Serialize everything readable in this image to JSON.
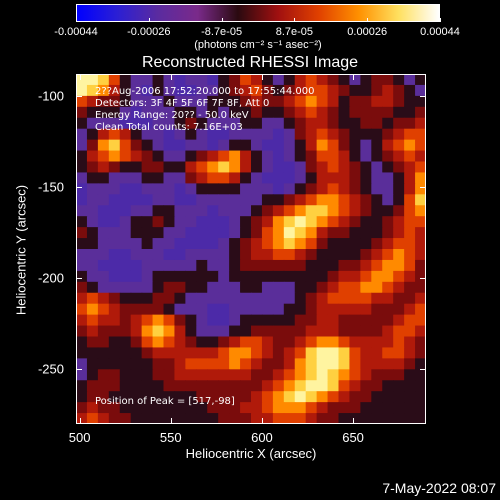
{
  "colorbar": {
    "tick_labels": [
      "-0.00044",
      "-0.00026",
      "-8.7e-05",
      "8.7e-05",
      "0.00026",
      "0.00044"
    ],
    "units_label": "(photons cm⁻² s⁻¹ asec⁻²)",
    "range": [
      -0.00044,
      0.00044
    ],
    "palette": [
      "#0000ff",
      "#2b1fd4",
      "#5a2ba0",
      "#7a2a8a",
      "#2a0a10",
      "#a01010",
      "#e04000",
      "#ff9000",
      "#ffe060",
      "#ffffff"
    ]
  },
  "title": "Reconstructed RHESSI Image",
  "info_lines": [
    "2??Aug-2006 17:52:20.000 to 17:55:44.000",
    "Detectors: 3F 4F 5F 6F 7F 8F, Att 0",
    "Energy Range: 20?? - 50.0 keV",
    "Clean     Total counts: 7.16E+03"
  ],
  "peak_text": "Position of Peak = [517,-98]",
  "footer_date": "7-May-2022 08:07",
  "chart_data": {
    "type": "heatmap",
    "title": "Reconstructed RHESSI Image",
    "xlabel": "Heliocentric X (arcsec)",
    "ylabel": "Heliocentric Y (arcsec)",
    "xlim": [
      498,
      690
    ],
    "ylim": [
      -280,
      -88
    ],
    "xticks": [
      500,
      550,
      600,
      650
    ],
    "yticks": [
      -100,
      -150,
      -200,
      -250
    ],
    "peak": [
      517,
      -98
    ],
    "value_range": [
      -0.00044,
      0.00044
    ],
    "grid_cols": 32,
    "grid_rows": 32,
    "values": [
      [
        9,
        9,
        8,
        6,
        3,
        2,
        2,
        3,
        2,
        1,
        2,
        2,
        1,
        3,
        4,
        6,
        5,
        3,
        2,
        3,
        5,
        6,
        5,
        4,
        3,
        2,
        3,
        4,
        4,
        3,
        2,
        3
      ],
      [
        9,
        8,
        7,
        5,
        3,
        2,
        1,
        3,
        2,
        1,
        1,
        2,
        2,
        3,
        4,
        5,
        6,
        4,
        3,
        4,
        5,
        6,
        6,
        5,
        4,
        3,
        3,
        4,
        5,
        4,
        3,
        2
      ],
      [
        6,
        5,
        4,
        4,
        3,
        2,
        2,
        2,
        3,
        2,
        2,
        2,
        3,
        3,
        3,
        4,
        5,
        4,
        4,
        5,
        6,
        7,
        6,
        5,
        3,
        4,
        4,
        5,
        5,
        4,
        3,
        3
      ],
      [
        4,
        3,
        3,
        3,
        2,
        1,
        2,
        2,
        2,
        3,
        3,
        2,
        3,
        2,
        3,
        3,
        4,
        3,
        3,
        4,
        5,
        6,
        5,
        4,
        3,
        4,
        4,
        4,
        4,
        3,
        3,
        4
      ],
      [
        3,
        2,
        2,
        2,
        1,
        1,
        1,
        2,
        2,
        3,
        4,
        3,
        2,
        2,
        2,
        3,
        3,
        2,
        2,
        3,
        4,
        5,
        5,
        4,
        3,
        3,
        4,
        4,
        3,
        4,
        4,
        5
      ],
      [
        2,
        3,
        5,
        6,
        5,
        3,
        2,
        2,
        1,
        2,
        3,
        2,
        1,
        1,
        2,
        2,
        2,
        2,
        1,
        2,
        4,
        5,
        6,
        5,
        4,
        3,
        3,
        3,
        4,
        5,
        6,
        6
      ],
      [
        2,
        4,
        7,
        8,
        6,
        4,
        3,
        2,
        1,
        1,
        2,
        2,
        1,
        2,
        3,
        3,
        2,
        1,
        1,
        2,
        3,
        5,
        7,
        6,
        4,
        3,
        2,
        3,
        5,
        6,
        7,
        6
      ],
      [
        3,
        5,
        6,
        7,
        6,
        5,
        4,
        3,
        2,
        2,
        3,
        4,
        5,
        6,
        7,
        5,
        3,
        2,
        1,
        2,
        3,
        4,
        6,
        6,
        5,
        3,
        2,
        3,
        4,
        5,
        6,
        5
      ],
      [
        3,
        4,
        5,
        4,
        3,
        3,
        4,
        4,
        3,
        3,
        5,
        6,
        7,
        8,
        7,
        5,
        3,
        2,
        1,
        1,
        2,
        4,
        5,
        6,
        5,
        4,
        3,
        2,
        3,
        4,
        5,
        6
      ],
      [
        2,
        3,
        3,
        2,
        2,
        2,
        3,
        3,
        2,
        2,
        4,
        5,
        6,
        6,
        5,
        3,
        2,
        1,
        1,
        1,
        2,
        3,
        5,
        5,
        5,
        4,
        3,
        2,
        2,
        3,
        5,
        7
      ],
      [
        1,
        2,
        2,
        2,
        1,
        1,
        2,
        2,
        2,
        1,
        2,
        3,
        3,
        3,
        3,
        2,
        2,
        2,
        1,
        2,
        3,
        4,
        5,
        6,
        5,
        4,
        3,
        2,
        2,
        3,
        5,
        7
      ],
      [
        1,
        2,
        2,
        1,
        1,
        1,
        1,
        2,
        2,
        1,
        1,
        2,
        2,
        2,
        2,
        2,
        2,
        3,
        3,
        4,
        5,
        6,
        7,
        7,
        6,
        5,
        4,
        3,
        2,
        3,
        6,
        8
      ],
      [
        2,
        2,
        1,
        1,
        1,
        2,
        2,
        3,
        3,
        2,
        2,
        2,
        1,
        2,
        2,
        2,
        3,
        4,
        5,
        6,
        7,
        8,
        8,
        7,
        6,
        5,
        4,
        3,
        3,
        4,
        6,
        7
      ],
      [
        3,
        2,
        1,
        1,
        2,
        3,
        3,
        4,
        3,
        2,
        2,
        1,
        1,
        1,
        2,
        3,
        4,
        5,
        7,
        8,
        9,
        8,
        7,
        6,
        5,
        4,
        3,
        3,
        4,
        5,
        6,
        6
      ],
      [
        4,
        3,
        2,
        2,
        2,
        3,
        3,
        3,
        2,
        2,
        1,
        1,
        1,
        1,
        2,
        3,
        4,
        6,
        7,
        9,
        8,
        7,
        5,
        4,
        4,
        3,
        3,
        3,
        4,
        5,
        6,
        5
      ],
      [
        3,
        3,
        2,
        2,
        2,
        2,
        3,
        2,
        2,
        1,
        1,
        1,
        1,
        2,
        3,
        4,
        5,
        6,
        7,
        8,
        7,
        6,
        4,
        3,
        3,
        3,
        3,
        4,
        5,
        6,
        6,
        5
      ],
      [
        2,
        2,
        2,
        1,
        1,
        2,
        2,
        2,
        1,
        1,
        2,
        2,
        2,
        2,
        3,
        4,
        5,
        5,
        6,
        6,
        5,
        4,
        3,
        3,
        3,
        3,
        4,
        5,
        6,
        7,
        6,
        5
      ],
      [
        2,
        2,
        1,
        1,
        1,
        1,
        2,
        2,
        2,
        2,
        2,
        3,
        2,
        2,
        3,
        4,
        4,
        4,
        4,
        4,
        4,
        3,
        3,
        3,
        4,
        4,
        5,
        6,
        7,
        7,
        6,
        4
      ],
      [
        3,
        2,
        2,
        1,
        1,
        1,
        2,
        3,
        3,
        3,
        3,
        3,
        3,
        2,
        3,
        3,
        3,
        3,
        3,
        3,
        3,
        3,
        3,
        4,
        5,
        5,
        6,
        7,
        7,
        6,
        5,
        4
      ],
      [
        4,
        3,
        2,
        2,
        2,
        2,
        2,
        3,
        4,
        4,
        3,
        3,
        2,
        2,
        2,
        3,
        3,
        2,
        2,
        2,
        3,
        3,
        4,
        5,
        6,
        6,
        7,
        7,
        6,
        5,
        4,
        4
      ],
      [
        5,
        6,
        5,
        4,
        3,
        3,
        3,
        4,
        4,
        3,
        2,
        2,
        2,
        2,
        2,
        2,
        2,
        2,
        2,
        2,
        3,
        4,
        5,
        6,
        6,
        6,
        6,
        5,
        5,
        4,
        4,
        5
      ],
      [
        6,
        7,
        6,
        5,
        4,
        4,
        4,
        4,
        3,
        2,
        2,
        2,
        1,
        1,
        2,
        2,
        2,
        2,
        2,
        3,
        3,
        4,
        5,
        5,
        5,
        5,
        5,
        4,
        4,
        4,
        5,
        6
      ],
      [
        5,
        6,
        5,
        5,
        4,
        5,
        6,
        7,
        6,
        4,
        3,
        2,
        1,
        1,
        2,
        3,
        3,
        3,
        3,
        3,
        4,
        4,
        5,
        5,
        4,
        4,
        4,
        4,
        4,
        5,
        6,
        6
      ],
      [
        4,
        5,
        4,
        4,
        4,
        5,
        7,
        8,
        7,
        5,
        3,
        2,
        2,
        2,
        3,
        3,
        4,
        4,
        4,
        4,
        4,
        5,
        5,
        5,
        4,
        4,
        4,
        4,
        5,
        6,
        6,
        5
      ],
      [
        3,
        4,
        4,
        3,
        3,
        4,
        6,
        7,
        6,
        5,
        4,
        3,
        3,
        4,
        5,
        6,
        6,
        5,
        4,
        4,
        5,
        6,
        7,
        7,
        6,
        5,
        5,
        5,
        5,
        6,
        5,
        4
      ],
      [
        3,
        3,
        3,
        3,
        3,
        3,
        4,
        5,
        5,
        5,
        5,
        5,
        5,
        6,
        7,
        7,
        6,
        5,
        4,
        5,
        6,
        8,
        9,
        9,
        8,
        6,
        5,
        5,
        6,
        6,
        5,
        4
      ],
      [
        2,
        3,
        3,
        3,
        3,
        3,
        3,
        4,
        4,
        5,
        6,
        6,
        6,
        6,
        7,
        6,
        5,
        4,
        4,
        5,
        7,
        8,
        9,
        9,
        8,
        6,
        5,
        5,
        5,
        5,
        4,
        3
      ],
      [
        2,
        3,
        4,
        4,
        3,
        3,
        3,
        4,
        4,
        5,
        5,
        5,
        5,
        5,
        5,
        5,
        4,
        4,
        5,
        6,
        7,
        8,
        9,
        8,
        7,
        6,
        5,
        4,
        4,
        4,
        3,
        3
      ],
      [
        3,
        4,
        4,
        4,
        3,
        3,
        3,
        3,
        4,
        4,
        4,
        4,
        4,
        4,
        4,
        4,
        4,
        5,
        6,
        7,
        8,
        9,
        9,
        8,
        6,
        5,
        4,
        4,
        3,
        3,
        3,
        3
      ],
      [
        3,
        4,
        4,
        3,
        3,
        3,
        3,
        3,
        3,
        3,
        3,
        4,
        4,
        4,
        4,
        4,
        5,
        6,
        7,
        8,
        9,
        8,
        7,
        6,
        5,
        4,
        4,
        3,
        3,
        3,
        3,
        3
      ],
      [
        4,
        5,
        4,
        4,
        3,
        3,
        3,
        3,
        3,
        3,
        3,
        3,
        4,
        4,
        4,
        5,
        5,
        6,
        7,
        7,
        7,
        6,
        5,
        4,
        4,
        4,
        3,
        3,
        3,
        3,
        3,
        3
      ],
      [
        5,
        6,
        5,
        4,
        4,
        3,
        3,
        3,
        3,
        3,
        3,
        3,
        3,
        4,
        4,
        4,
        5,
        5,
        6,
        6,
        6,
        5,
        4,
        4,
        3,
        3,
        3,
        3,
        3,
        3,
        3,
        3
      ]
    ]
  }
}
